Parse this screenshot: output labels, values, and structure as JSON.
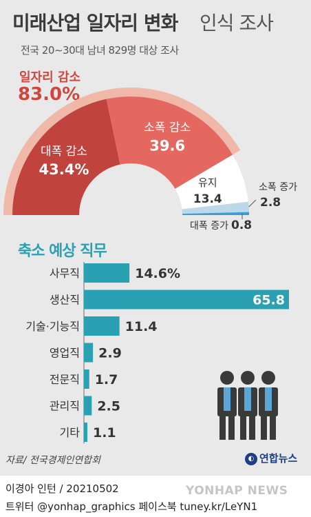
{
  "header": {
    "title_bold": "미래산업 일자리 변화",
    "title_light": "인식 조사",
    "subtitle": "전국 20∼30대 남녀 829명 대상 조사"
  },
  "job_decrease_total": {
    "label": "일자리 감소",
    "value": "83.0%"
  },
  "section_title": "축소 예상 직무",
  "colors": {
    "large_decrease": "#c0433d",
    "small_decrease": "#e56860",
    "maintain": "#ffffff",
    "small_increase": "#bcd9ea",
    "large_increase": "#3e9fcf",
    "outer_ring": "#f0b8a8",
    "bar": "#2aa0b3",
    "axis": "#aaaaaa"
  },
  "chart_data": [
    {
      "type": "pie",
      "shape": "half-donut",
      "slices": [
        {
          "name": "대폭 감소",
          "value": 43.4,
          "label": "43.4%"
        },
        {
          "name": "소폭 감소",
          "value": 39.6,
          "label": "39.6"
        },
        {
          "name": "유지",
          "value": 13.4,
          "label": "13.4"
        },
        {
          "name": "소폭 증가",
          "value": 2.8,
          "label": "2.8"
        },
        {
          "name": "대폭 증가",
          "value": 0.8,
          "label": "0.8"
        }
      ]
    },
    {
      "type": "bar",
      "orientation": "horizontal",
      "title": "축소 예상 직무",
      "categories": [
        "사무직",
        "생산직",
        "기술·기능직",
        "영업직",
        "전문직",
        "관리직",
        "기타"
      ],
      "values": [
        14.6,
        65.8,
        11.4,
        2.9,
        1.7,
        2.5,
        1.1
      ],
      "value_labels": [
        "14.6%",
        "65.8",
        "11.4",
        "2.9",
        "1.7",
        "2.5",
        "1.1"
      ]
    }
  ],
  "footer": {
    "source": "자료/ 전국경제인연합회",
    "logo": "연합뉴스",
    "credit": "이경아 인턴 / 20210502",
    "social": "트위터 @yonhap_graphics  페이스북 tuney.kr/LeYN1",
    "watermark": "YONHAP NEWS"
  }
}
